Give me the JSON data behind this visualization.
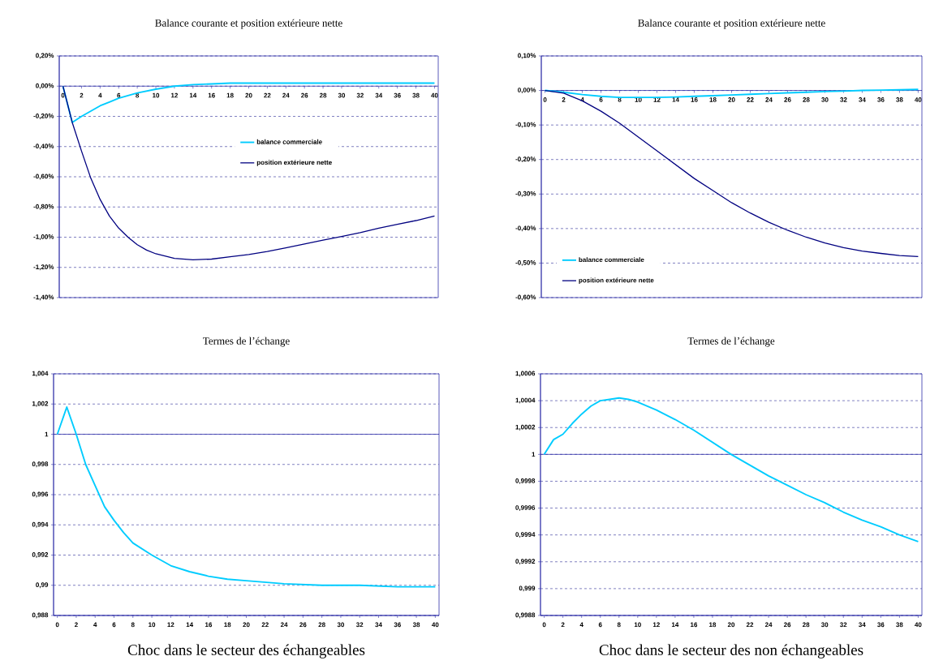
{
  "chart_data": [
    {
      "type": "line",
      "title": "Balance courante et position extérieure nette",
      "marker": "none",
      "grid": "y",
      "legend": "center",
      "xlim": [
        -0.4,
        40.4
      ],
      "xticks": [
        0,
        2,
        4,
        6,
        8,
        10,
        12,
        14,
        16,
        18,
        20,
        22,
        24,
        26,
        28,
        30,
        32,
        34,
        36,
        38,
        40
      ],
      "ylim": [
        -1.4,
        0.2
      ],
      "yticks": [
        {
          "value": 0.2,
          "label": "0,20%"
        },
        {
          "value": 0,
          "label": "0,00%"
        },
        {
          "value": -0.2,
          "label": "-0,20%"
        },
        {
          "value": -0.4,
          "label": "-0,40%"
        },
        {
          "value": -0.6,
          "label": "-0,60%"
        },
        {
          "value": -0.8,
          "label": "-0,80%"
        },
        {
          "value": -1.0,
          "label": "-1,00%"
        },
        {
          "value": -1.2,
          "label": "-1,20%"
        },
        {
          "value": -1.4,
          "label": "-1,40%"
        }
      ],
      "series": [
        {
          "name": "balance commerciale",
          "color": "#00ccff",
          "x": [
            0,
            1,
            2,
            3,
            4,
            5,
            6,
            8,
            10,
            12,
            14,
            16,
            18,
            20,
            24,
            28,
            32,
            36,
            40
          ],
          "values": [
            0,
            -0.24,
            -0.2,
            -0.165,
            -0.13,
            -0.105,
            -0.08,
            -0.045,
            -0.02,
            0.0,
            0.01,
            0.015,
            0.02,
            0.02,
            0.02,
            0.02,
            0.02,
            0.02,
            0.02
          ]
        },
        {
          "name": "position extérieure nette",
          "color": "#000080",
          "x": [
            0,
            1,
            2,
            3,
            4,
            5,
            6,
            7,
            8,
            9,
            10,
            12,
            14,
            16,
            18,
            20,
            22,
            24,
            26,
            28,
            30,
            32,
            34,
            36,
            38,
            40
          ],
          "values": [
            0,
            -0.24,
            -0.43,
            -0.61,
            -0.75,
            -0.86,
            -0.94,
            -1.0,
            -1.05,
            -1.085,
            -1.11,
            -1.14,
            -1.15,
            -1.145,
            -1.13,
            -1.115,
            -1.095,
            -1.07,
            -1.045,
            -1.02,
            -0.995,
            -0.97,
            -0.94,
            -0.915,
            -0.89,
            -0.86
          ]
        }
      ]
    },
    {
      "type": "line",
      "title": "Balance courante et position extérieure nette",
      "marker": "none",
      "grid": "y",
      "legend": "bottom left",
      "xlim": [
        -0.4,
        40.4
      ],
      "xticks": [
        0,
        2,
        4,
        6,
        8,
        10,
        12,
        14,
        16,
        18,
        20,
        22,
        24,
        26,
        28,
        30,
        32,
        34,
        36,
        38,
        40
      ],
      "ylim": [
        -0.6,
        0.1
      ],
      "yticks": [
        {
          "value": 0.1,
          "label": "0,10%"
        },
        {
          "value": 0,
          "label": "0,00%"
        },
        {
          "value": -0.1,
          "label": "-0,10%"
        },
        {
          "value": -0.2,
          "label": "-0,20%"
        },
        {
          "value": -0.3,
          "label": "-0,30%"
        },
        {
          "value": -0.4,
          "label": "-0,40%"
        },
        {
          "value": -0.5,
          "label": "-0,50%"
        },
        {
          "value": -0.6,
          "label": "-0,60%"
        }
      ],
      "series": [
        {
          "name": "balance commerciale",
          "color": "#00ccff",
          "x": [
            0,
            2,
            4,
            6,
            8,
            10,
            12,
            14,
            16,
            18,
            20,
            22,
            24,
            26,
            28,
            30,
            32,
            34,
            36,
            38,
            40
          ],
          "values": [
            0,
            -0.005,
            -0.012,
            -0.017,
            -0.02,
            -0.02,
            -0.02,
            -0.019,
            -0.017,
            -0.015,
            -0.013,
            -0.011,
            -0.009,
            -0.007,
            -0.005,
            -0.003,
            -0.002,
            0.0,
            0.001,
            0.002,
            0.003
          ]
        },
        {
          "name": "position extérieure nette",
          "color": "#000080",
          "x": [
            0,
            2,
            4,
            6,
            8,
            10,
            12,
            14,
            16,
            18,
            20,
            22,
            24,
            26,
            28,
            30,
            32,
            34,
            36,
            38,
            40
          ],
          "values": [
            0,
            -0.008,
            -0.03,
            -0.06,
            -0.095,
            -0.135,
            -0.175,
            -0.215,
            -0.255,
            -0.29,
            -0.325,
            -0.355,
            -0.382,
            -0.405,
            -0.425,
            -0.442,
            -0.455,
            -0.465,
            -0.472,
            -0.478,
            -0.481
          ]
        }
      ]
    },
    {
      "type": "line",
      "title": "Termes de l’échange",
      "marker": "none",
      "grid": "y",
      "annotations": [
        "Choc dans le secteur des échangeables"
      ],
      "xlim": [
        -0.4,
        40.4
      ],
      "xticks": [
        0,
        2,
        4,
        6,
        8,
        10,
        12,
        14,
        16,
        18,
        20,
        22,
        24,
        26,
        28,
        30,
        32,
        34,
        36,
        38,
        40
      ],
      "ylim": [
        0.988,
        1.004
      ],
      "yticks": [
        {
          "value": 1.004,
          "label": "1,004"
        },
        {
          "value": 1.002,
          "label": "1,002"
        },
        1,
        {
          "value": 0.998,
          "label": "0,998"
        },
        {
          "value": 0.996,
          "label": "0,996"
        },
        {
          "value": 0.994,
          "label": "0,994"
        },
        {
          "value": 0.992,
          "label": "0,992"
        },
        {
          "value": 0.99,
          "label": "0,99"
        },
        {
          "value": 0.988,
          "label": "0,988"
        }
      ],
      "ref_lines": [
        {
          "axis": "y",
          "value": 1,
          "color": "#3030a8"
        }
      ],
      "series": [
        {
          "color": "#00ccff",
          "x": [
            0,
            1,
            2,
            3,
            4,
            5,
            6,
            7,
            8,
            10,
            12,
            14,
            16,
            18,
            20,
            24,
            28,
            32,
            36,
            40
          ],
          "values": [
            1,
            1.0018,
            1.0,
            0.998,
            0.9966,
            0.9952,
            0.9943,
            0.9935,
            0.9928,
            0.992,
            0.9913,
            0.9909,
            0.9906,
            0.9904,
            0.9903,
            0.9901,
            0.99,
            0.99,
            0.9899,
            0.9899
          ]
        }
      ]
    },
    {
      "type": "line",
      "title": "Termes de l’échange",
      "marker": "none",
      "grid": "y",
      "annotations": [
        "Choc dans le secteur des non échangeables"
      ],
      "xlim": [
        -0.4,
        40.4
      ],
      "xticks": [
        0,
        2,
        4,
        6,
        8,
        10,
        12,
        14,
        16,
        18,
        20,
        22,
        24,
        26,
        28,
        30,
        32,
        34,
        36,
        38,
        40
      ],
      "ylim": [
        0.9988,
        1.0006
      ],
      "yticks": [
        {
          "value": 1.0006,
          "label": "1,0006"
        },
        {
          "value": 1.0004,
          "label": "1,0004"
        },
        {
          "value": 1.0002,
          "label": "1,0002"
        },
        1,
        {
          "value": 0.9998,
          "label": "0,9998"
        },
        {
          "value": 0.9996,
          "label": "0,9996"
        },
        {
          "value": 0.9994,
          "label": "0,9994"
        },
        {
          "value": 0.9992,
          "label": "0,9992"
        },
        {
          "value": 0.999,
          "label": "0,999"
        },
        {
          "value": 0.9988,
          "label": "0,9988"
        }
      ],
      "ref_lines": [
        {
          "axis": "y",
          "value": 1,
          "color": "#3030a8"
        }
      ],
      "series": [
        {
          "color": "#00ccff",
          "x": [
            0,
            1,
            2,
            3,
            4,
            5,
            6,
            7,
            8,
            9,
            10,
            12,
            14,
            16,
            18,
            20,
            22,
            24,
            26,
            28,
            30,
            32,
            34,
            36,
            38,
            40
          ],
          "values": [
            1,
            1.00011,
            1.00015,
            1.00023,
            1.0003,
            1.00036,
            1.0004,
            1.00041,
            1.00042,
            1.00041,
            1.00039,
            1.00033,
            1.00026,
            1.00018,
            1.00009,
            1.0,
            0.99992,
            0.99984,
            0.99977,
            0.9997,
            0.99964,
            0.99957,
            0.99951,
            0.99946,
            0.9994,
            0.99935
          ]
        }
      ]
    }
  ]
}
